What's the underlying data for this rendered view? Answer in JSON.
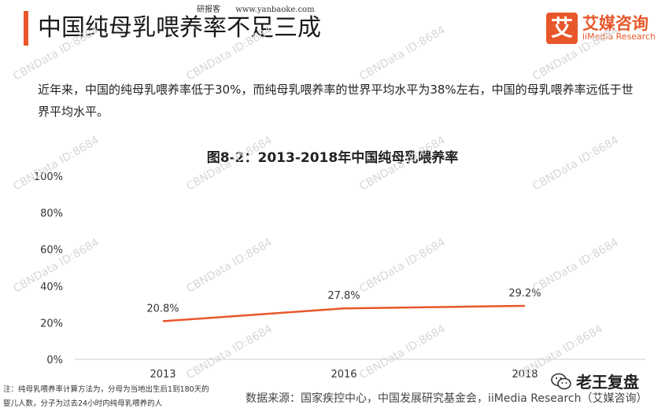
{
  "header": {
    "title": "中国纯母乳喂养率不足三成",
    "topmark": [
      "研报客",
      "www.yanbaoke.com"
    ],
    "logo_glyph": "艾",
    "logo_cn": "艾媒咨询",
    "logo_en": "iiMedia Research"
  },
  "description": "近年来，中国的纯母乳喂养率低于30%，而纯母乳喂养率的世界平均水平为38%左右，中国的母乳喂养率远低于世界平均水平。",
  "chart_data": {
    "type": "line",
    "title": "图8-2：2013-2018年中国纯母乳喂养率",
    "categories": [
      "2013",
      "2016",
      "2018"
    ],
    "values": [
      20.8,
      27.8,
      29.2
    ],
    "data_labels": [
      "20.8%",
      "27.8%",
      "29.2%"
    ],
    "y_ticks": [
      "0%",
      "20%",
      "40%",
      "60%",
      "80%",
      "100%"
    ],
    "ylim": [
      0,
      100
    ],
    "grid": false,
    "legend": "none",
    "line_color": "#e8572a"
  },
  "footer": {
    "note": "注：纯母乳喂养率计算方法为，分母为当地出生后1到180天的婴儿人数，分子为过去24小时内纯母乳喂养的人",
    "source": "数据来源：国家疾控中心，中国发展研究基金会，iiMedia Research（艾媒咨询）",
    "wechat_label": "老王复盘"
  },
  "watermark": "CBNData ID:8684",
  "colors": {
    "accent": "#e8572a",
    "axis": "#cccccc",
    "watermark": "#d7d7d7"
  }
}
